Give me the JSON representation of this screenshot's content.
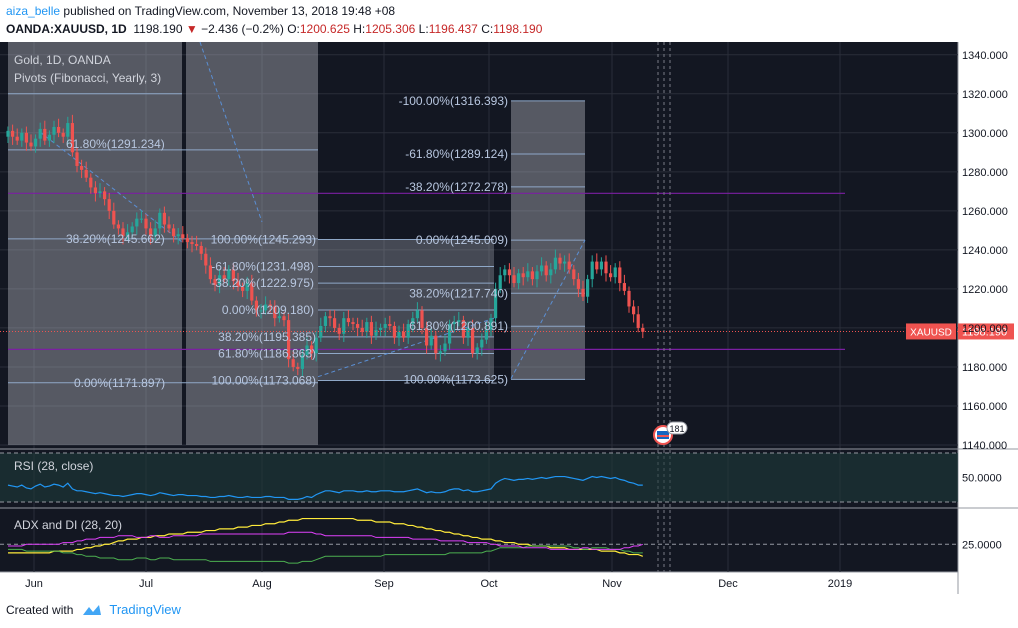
{
  "header": {
    "user": "aiza_belle",
    "published": "published on TradingView.com, November 13, 2018 19:48 +08",
    "symbol": "OANDA:XAUUSD, 1D",
    "last": "1198.190",
    "change": "−2.436 (−0.2%)",
    "o_label": "O:",
    "o": "1200.625",
    "h_label": "H:",
    "h": "1205.306",
    "l_label": "L:",
    "l": "1196.437",
    "c_label": "C:",
    "c": "1198.190"
  },
  "footer": {
    "created": "Created with",
    "brand": "TradingView"
  },
  "colors": {
    "bg": "#131722",
    "up": "#26a69a",
    "down": "#ef5350",
    "fib_box": "#b2b5be",
    "fib_line": "#8fa8c8",
    "pivot_line": "#7b1fa2",
    "rsi": "#2196f3",
    "adx": "#ffeb3b",
    "di_plus": "#4caf50",
    "di_minus": "#e040fb"
  },
  "chart_data": {
    "type": "candlestick",
    "title": "Gold, 1D, OANDA",
    "indicator": "Pivots (Fibonacci, Yearly, 3)",
    "ylim": [
      1140,
      1345
    ],
    "y_ticks": [
      "1340.000",
      "1320.000",
      "1300.000",
      "1280.000",
      "1260.000",
      "1240.000",
      "1220.000",
      "1200.000",
      "1180.000",
      "1160.000",
      "1140.000"
    ],
    "x_ticks": [
      "Jun",
      "Jul",
      "Aug",
      "Sep",
      "Oct",
      "Nov",
      "Dec",
      "2019"
    ],
    "price_label": "XAUUSD",
    "price_value": "1198.190",
    "pivot_lines": [
      {
        "label": "61.80%(1291.234)",
        "value": 1291.234
      },
      {
        "label": "38.20%(1245.662)",
        "value": 1245.662
      },
      {
        "label": "0.00%(1171.897)",
        "value": 1171.897
      }
    ],
    "fib_box1": [
      {
        "label": "100.00%(1245.293)",
        "value": 1245.293
      },
      {
        "label": "-61.80%(1231.498)",
        "value": 1231.498
      },
      {
        "label": "-38.20%(1222.975)",
        "value": 1222.975
      },
      {
        "label": "0.00%(1209.180)",
        "value": 1209.18
      },
      {
        "label": "38.20%(1195.385)",
        "value": 1195.385
      },
      {
        "label": "61.80%(1186.863)",
        "value": 1186.863
      },
      {
        "label": "100.00%(1173.068)",
        "value": 1173.068
      }
    ],
    "fib_box2": [
      {
        "label": "-100.00%(1316.393)",
        "value": 1316.393
      },
      {
        "label": "-61.80%(1289.124)",
        "value": 1289.124
      },
      {
        "label": "-38.20%(1272.278)",
        "value": 1272.278
      },
      {
        "label": "0.00%(1245.009)",
        "value": 1245.009
      },
      {
        "label": "38.20%(1217.740)",
        "value": 1217.74
      },
      {
        "label": "61.80%(1200.891)",
        "value": 1200.891
      },
      {
        "label": "100.00%(1173.625)",
        "value": 1173.625
      }
    ],
    "purple_lines": [
      1269,
      1189
    ],
    "closes": [
      1301,
      1298,
      1296,
      1300,
      1295,
      1293,
      1297,
      1302,
      1296,
      1299,
      1303,
      1300,
      1298,
      1305,
      1290,
      1283,
      1281,
      1277,
      1272,
      1269,
      1270,
      1266,
      1260,
      1253,
      1251,
      1247,
      1249,
      1252,
      1256,
      1256,
      1251,
      1247,
      1251,
      1259,
      1253,
      1251,
      1247,
      1248,
      1246,
      1244,
      1243,
      1242,
      1238,
      1232,
      1225,
      1222,
      1227,
      1225,
      1230,
      1224,
      1221,
      1219,
      1223,
      1214,
      1209,
      1209,
      1212,
      1211,
      1205,
      1206,
      1204,
      1184,
      1180,
      1179,
      1186,
      1191,
      1187,
      1195,
      1201,
      1206,
      1205,
      1200,
      1197,
      1205,
      1203,
      1202,
      1200,
      1198,
      1203,
      1196,
      1199,
      1200,
      1202,
      1201,
      1195,
      1198,
      1195,
      1202,
      1205,
      1209,
      1200,
      1191,
      1196,
      1187,
      1188,
      1192,
      1202,
      1203,
      1204,
      1195,
      1200,
      1187,
      1190,
      1194,
      1199,
      1205,
      1220,
      1227,
      1230,
      1227,
      1223,
      1228,
      1226,
      1229,
      1225,
      1229,
      1232,
      1227,
      1230,
      1236,
      1233,
      1234,
      1230,
      1225,
      1220,
      1216,
      1225,
      1234,
      1230,
      1234,
      1228,
      1226,
      1231,
      1223,
      1219,
      1211,
      1207,
      1200,
      1198
    ],
    "rsi_label": "RSI (28, close)",
    "rsi_ylim": [
      20,
      80
    ],
    "rsi_ticks": [
      "50.0000"
    ],
    "rsi": [
      42,
      41,
      40,
      42,
      39,
      38,
      41,
      43,
      40,
      41,
      43,
      42,
      40,
      44,
      38,
      36,
      36,
      35,
      34,
      33,
      34,
      33,
      32,
      31,
      31,
      30,
      31,
      32,
      33,
      33,
      32,
      31,
      32,
      34,
      33,
      32,
      31,
      32,
      32,
      31,
      31,
      31,
      30,
      30,
      29,
      29,
      30,
      30,
      31,
      30,
      29,
      29,
      30,
      29,
      29,
      29,
      30,
      30,
      29,
      29,
      29,
      27,
      27,
      27,
      28,
      30,
      29,
      32,
      34,
      36,
      36,
      35,
      34,
      36,
      36,
      36,
      35,
      35,
      36,
      35,
      35,
      36,
      36,
      36,
      35,
      35,
      35,
      36,
      37,
      38,
      36,
      34,
      35,
      34,
      34,
      35,
      37,
      38,
      38,
      36,
      37,
      35,
      35,
      36,
      37,
      38,
      44,
      47,
      49,
      48,
      47,
      48,
      48,
      49,
      48,
      49,
      50,
      49,
      50,
      51,
      51,
      51,
      50,
      49,
      48,
      47,
      49,
      51,
      50,
      51,
      50,
      49,
      50,
      48,
      47,
      45,
      44,
      42,
      42
    ],
    "adx_label": "ADX and DI (28, 20)",
    "adx_ylim": [
      10,
      45
    ],
    "adx_ticks": [
      "25.0000"
    ],
    "adx": [
      20,
      20,
      20,
      20,
      20,
      20,
      20,
      20,
      20,
      20,
      21,
      21,
      21,
      21,
      21,
      22,
      22,
      23,
      23,
      24,
      24,
      25,
      25,
      26,
      27,
      27,
      28,
      28,
      28,
      29,
      29,
      29,
      30,
      30,
      30,
      31,
      31,
      31,
      31,
      32,
      32,
      32,
      32,
      33,
      33,
      33,
      34,
      34,
      34,
      34,
      35,
      35,
      35,
      36,
      36,
      36,
      37,
      37,
      37,
      38,
      38,
      39,
      39,
      39,
      40,
      40,
      40,
      40,
      40,
      40,
      40,
      40,
      40,
      40,
      40,
      40,
      39,
      39,
      39,
      39,
      38,
      38,
      38,
      38,
      37,
      37,
      37,
      36,
      36,
      35,
      35,
      34,
      34,
      33,
      33,
      32,
      32,
      31,
      31,
      30,
      30,
      29,
      29,
      28,
      28,
      28,
      27,
      27,
      26,
      26,
      26,
      25,
      25,
      25,
      24,
      24,
      24,
      24,
      23,
      23,
      23,
      23,
      22,
      22,
      22,
      22,
      22,
      22,
      22,
      21,
      21,
      21,
      21,
      20,
      20,
      19,
      19,
      19,
      18
    ],
    "di_plus": [
      22,
      22,
      22,
      22,
      21,
      21,
      21,
      21,
      21,
      21,
      21,
      21,
      20,
      20,
      20,
      19,
      19,
      18,
      18,
      18,
      17,
      17,
      17,
      17,
      16,
      16,
      16,
      16,
      17,
      17,
      17,
      16,
      16,
      17,
      17,
      17,
      16,
      16,
      16,
      16,
      16,
      16,
      16,
      16,
      15,
      15,
      15,
      15,
      15,
      15,
      15,
      15,
      15,
      15,
      15,
      15,
      15,
      15,
      15,
      15,
      15,
      14,
      14,
      14,
      15,
      15,
      15,
      16,
      17,
      18,
      18,
      18,
      18,
      18,
      18,
      18,
      18,
      18,
      18,
      18,
      18,
      18,
      19,
      19,
      19,
      19,
      19,
      19,
      19,
      19,
      19,
      19,
      19,
      19,
      19,
      19,
      20,
      20,
      20,
      20,
      20,
      20,
      20,
      20,
      21,
      21,
      22,
      23,
      23,
      23,
      23,
      23,
      23,
      24,
      24,
      24,
      24,
      24,
      24,
      24,
      24,
      24,
      24,
      23,
      23,
      22,
      22,
      23,
      23,
      23,
      23,
      22,
      22,
      22,
      21,
      21,
      20,
      20,
      20
    ],
    "di_minus": [
      24,
      24,
      24,
      24,
      25,
      25,
      25,
      25,
      25,
      25,
      25,
      25,
      26,
      26,
      26,
      27,
      27,
      28,
      28,
      28,
      29,
      29,
      29,
      29,
      30,
      30,
      30,
      30,
      29,
      29,
      29,
      30,
      30,
      29,
      29,
      29,
      30,
      30,
      30,
      30,
      30,
      30,
      31,
      31,
      31,
      31,
      31,
      31,
      31,
      31,
      31,
      31,
      31,
      31,
      31,
      31,
      31,
      31,
      31,
      31,
      31,
      32,
      32,
      32,
      32,
      32,
      32,
      31,
      31,
      30,
      30,
      30,
      30,
      30,
      30,
      30,
      30,
      30,
      30,
      30,
      29,
      29,
      29,
      29,
      29,
      29,
      29,
      29,
      28,
      28,
      28,
      28,
      28,
      28,
      27,
      27,
      27,
      27,
      27,
      27,
      26,
      26,
      26,
      26,
      26,
      25,
      25,
      24,
      24,
      24,
      24,
      24,
      23,
      23,
      23,
      23,
      23,
      23,
      22,
      22,
      22,
      22,
      22,
      22,
      22,
      23,
      23,
      22,
      22,
      22,
      22,
      22,
      22,
      22,
      23,
      23,
      24,
      24,
      25
    ]
  }
}
